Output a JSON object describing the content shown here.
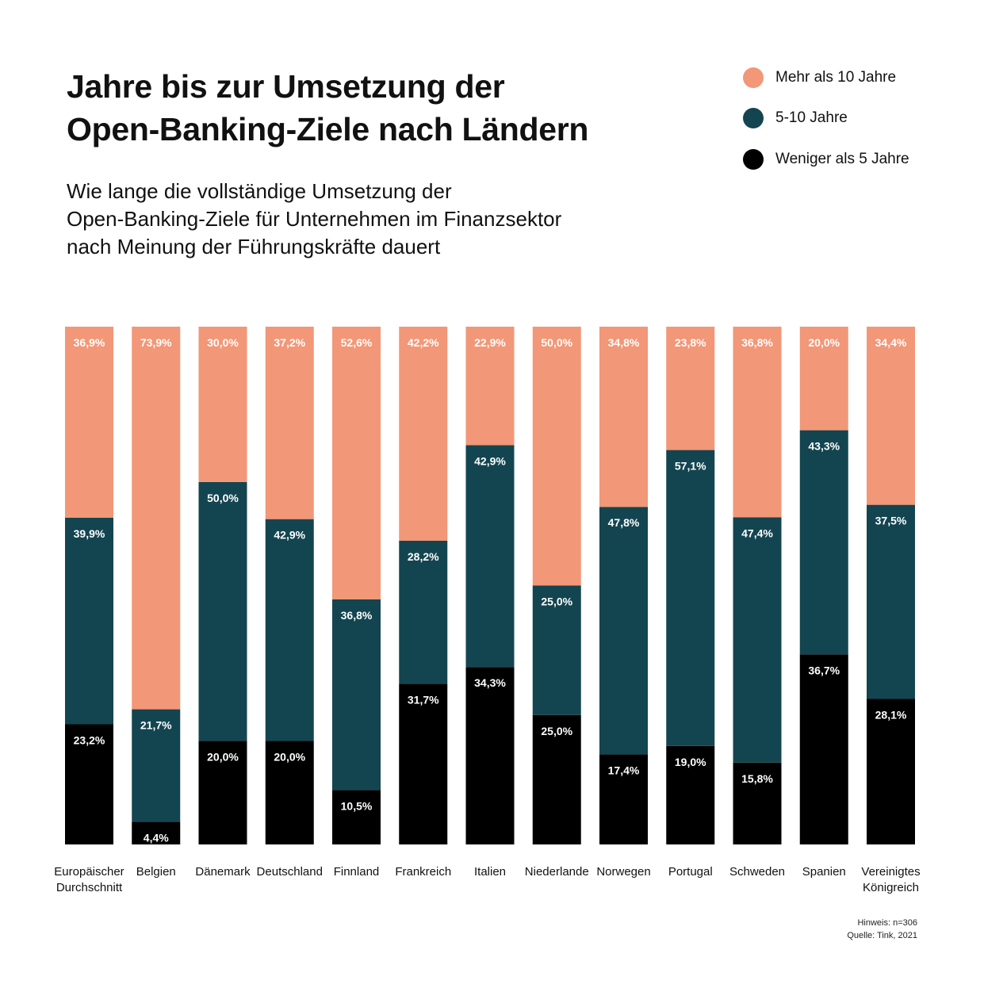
{
  "title": {
    "line1": "Jahre bis zur Umsetzung der",
    "line2": "Open-Banking-Ziele nach Ländern"
  },
  "subtitle": {
    "line1": "Wie lange die vollständige Umsetzung der",
    "line2": "Open-Banking-Ziele für Unternehmen im Finanzsektor",
    "line3": "nach Meinung der Führungskräfte dauert"
  },
  "legend": [
    {
      "label": "Mehr als 10 Jahre",
      "color": "#F29777"
    },
    {
      "label": "5-10 Jahre",
      "color": "#134550"
    },
    {
      "label": "Weniger als 5 Jahre",
      "color": "#000000"
    }
  ],
  "notes": {
    "line1": "Hinweis: n=306",
    "line2": "Quelle: Tink, 2021"
  },
  "chart_data": {
    "type": "bar",
    "stacked": true,
    "ylim": [
      0,
      100
    ],
    "grid": false,
    "legend_position": "top-right",
    "categories": [
      [
        "Europäischer",
        "Durchschnitt"
      ],
      [
        "Belgien"
      ],
      [
        "Dänemark"
      ],
      [
        "Deutschland"
      ],
      [
        "Finnland"
      ],
      [
        "Frankreich"
      ],
      [
        "Italien"
      ],
      [
        "Niederlande"
      ],
      [
        "Norwegen"
      ],
      [
        "Portugal"
      ],
      [
        "Schweden"
      ],
      [
        "Spanien"
      ],
      [
        "Vereinigtes",
        "Königreich"
      ]
    ],
    "series": [
      {
        "name": "Weniger als 5 Jahre",
        "color": "#000000",
        "values": [
          23.2,
          4.4,
          20.0,
          20.0,
          10.5,
          31.7,
          34.3,
          25.0,
          17.4,
          19.0,
          15.8,
          36.7,
          28.1
        ],
        "labels": [
          "23,2%",
          "4,4%",
          "20,0%",
          "20,0%",
          "10,5%",
          "31,7%",
          "34,3%",
          "25,0%",
          "17,4%",
          "19,0%",
          "15,8%",
          "36,7%",
          "28,1%"
        ]
      },
      {
        "name": "5-10 Jahre",
        "color": "#134550",
        "values": [
          39.9,
          21.7,
          50.0,
          42.9,
          36.8,
          28.2,
          42.9,
          25.0,
          47.8,
          57.1,
          47.4,
          43.3,
          37.5
        ],
        "labels": [
          "39,9%",
          "21,7%",
          "50,0%",
          "42,9%",
          "36,8%",
          "28,2%",
          "42,9%",
          "25,0%",
          "47,8%",
          "57,1%",
          "47,4%",
          "43,3%",
          "37,5%"
        ]
      },
      {
        "name": "Mehr als 10 Jahre",
        "color": "#F29777",
        "values": [
          36.9,
          73.9,
          30.0,
          37.2,
          52.6,
          42.2,
          22.9,
          50.0,
          34.8,
          23.8,
          36.8,
          20.0,
          34.4
        ],
        "labels": [
          "36,9%",
          "73,9%",
          "30,0%",
          "37,2%",
          "52,6%",
          "42,2%",
          "22,9%",
          "50,0%",
          "34,8%",
          "23,8%",
          "36,8%",
          "20,0%",
          "34,4%"
        ]
      }
    ]
  }
}
